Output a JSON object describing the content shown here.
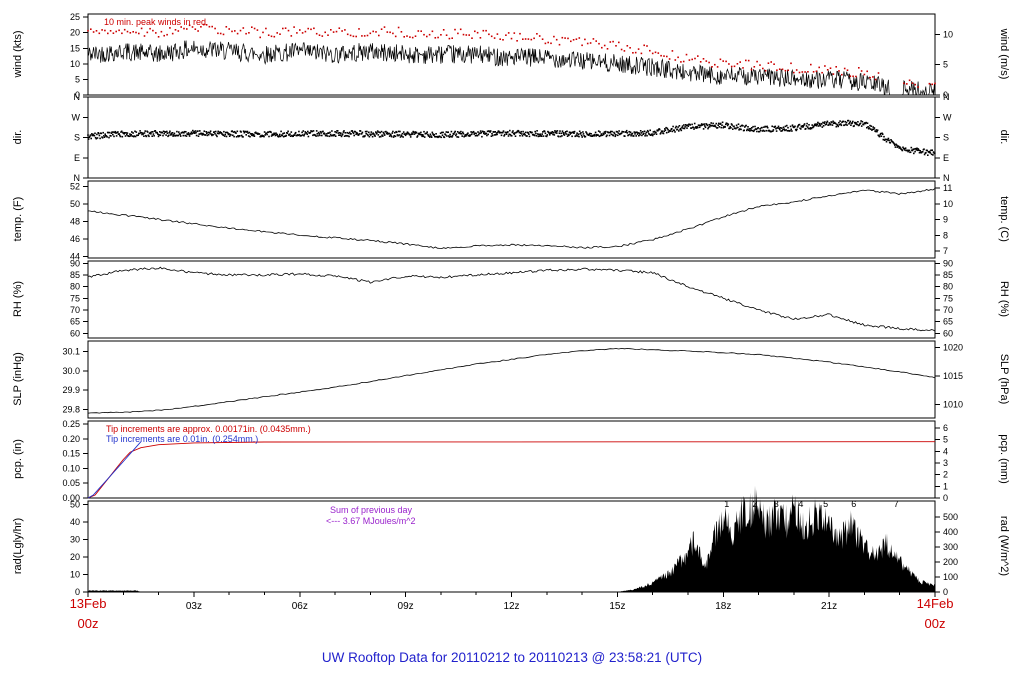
{
  "chart_data": {
    "type": "line",
    "title": "UW Rooftop Data for 20110212  to  20110213 @ 23:58:21  (UTC)",
    "title_color": "#2222cc",
    "x_axis": {
      "hours_range": [
        0,
        24
      ],
      "tick_hours": [
        3,
        6,
        9,
        12,
        15,
        18,
        21
      ],
      "tick_labels": [
        "03z",
        "06z",
        "09z",
        "12z",
        "15z",
        "18z",
        "21z"
      ],
      "start_top": "13Feb",
      "start_bottom": "00z",
      "end_top": "14Feb",
      "end_bottom": "00z",
      "corner_color": "#cc0000"
    },
    "panels": [
      {
        "id": "wind",
        "left_title": "wind (kts)",
        "right_title": "wind (m/s)",
        "ylim": [
          0,
          26
        ],
        "left_ticks": [
          {
            "v": 0,
            "label": "0"
          },
          {
            "v": 5,
            "label": "5"
          },
          {
            "v": 10,
            "label": "10"
          },
          {
            "v": 15,
            "label": "15"
          },
          {
            "v": 20,
            "label": "20"
          },
          {
            "v": 25,
            "label": "25"
          }
        ],
        "right_ticks": [
          {
            "v": 0,
            "label": "0"
          },
          {
            "v": 9.72,
            "label": "5"
          },
          {
            "v": 19.44,
            "label": "10"
          }
        ],
        "annotation": {
          "text": "10 min. peak winds in red",
          "color": "#cc0000"
        },
        "series": [
          {
            "name": "wind_speed",
            "type": "noisyline",
            "color": "#000000",
            "lw": 0.7,
            "noise": 3.0,
            "step": 0.02,
            "clampMin": 0,
            "gaps": [
              [
                22.72,
                23.05
              ]
            ],
            "x": [
              0,
              1,
              2,
              3,
              4,
              5,
              6,
              7,
              8,
              9,
              10,
              11,
              12,
              13,
              14,
              15,
              16,
              17,
              18,
              19,
              20,
              21,
              22,
              23,
              24
            ],
            "y": [
              13,
              14,
              13,
              15,
              14,
              13,
              14,
              13,
              14,
              13,
              13,
              13,
              12,
              12,
              11,
              10,
              9,
              7,
              6,
              6,
              5,
              5,
              4,
              2,
              1
            ]
          },
          {
            "name": "peak_wind",
            "type": "dots",
            "color": "#cc0000",
            "size": 1.6,
            "noise": 1.6,
            "step": 0.08,
            "clampMin": 0.5,
            "gaps": [
              [
                22.4,
                23.1
              ],
              [
                23.55,
                23.8
              ]
            ],
            "x": [
              0,
              1,
              2,
              3,
              4,
              5,
              6,
              7,
              8,
              9,
              10,
              11,
              12,
              13,
              14,
              15,
              16,
              17,
              18,
              19,
              20,
              21,
              22,
              23,
              24
            ],
            "y": [
              20,
              21,
              20,
              21.5,
              20.5,
              20,
              20.5,
              20,
              20.5,
              20,
              19.5,
              19.5,
              18.5,
              18,
              17,
              15.5,
              14,
              11.5,
              10,
              9.5,
              8.5,
              8,
              7,
              4.5,
              3
            ]
          }
        ]
      },
      {
        "id": "dir",
        "left_title": "dir.",
        "right_title": "dir.",
        "ylim": [
          0,
          360
        ],
        "left_ticks": [
          {
            "v": 0,
            "label": "N"
          },
          {
            "v": 90,
            "label": "E"
          },
          {
            "v": 180,
            "label": "S"
          },
          {
            "v": 270,
            "label": "W"
          },
          {
            "v": 360,
            "label": "N"
          }
        ],
        "right_ticks": [
          {
            "v": 0,
            "label": "N"
          },
          {
            "v": 90,
            "label": "E"
          },
          {
            "v": 180,
            "label": "S"
          },
          {
            "v": 270,
            "label": "W"
          },
          {
            "v": 360,
            "label": "N"
          }
        ],
        "series": [
          {
            "name": "wind_direction",
            "type": "dots",
            "color": "#000000",
            "size": 1.6,
            "noise": 13,
            "step": 0.018,
            "x": [
              0,
              1,
              2,
              3,
              4,
              5,
              6,
              7,
              8,
              9,
              10,
              11,
              12,
              13,
              14,
              15,
              16,
              17,
              18,
              19,
              20,
              21,
              22,
              23,
              24
            ],
            "y": [
              185,
              196,
              197,
              198,
              196,
              194,
              196,
              198,
              196,
              194,
              193,
              196,
              198,
              197,
              195,
              197,
              200,
              228,
              235,
              215,
              222,
              240,
              244,
              130,
              110
            ]
          }
        ]
      },
      {
        "id": "temp",
        "left_title": "temp. (F)",
        "right_title": "temp. (C)",
        "ylim": [
          43.8,
          52.6
        ],
        "left_ticks": [
          {
            "v": 44,
            "label": "44"
          },
          {
            "v": 46,
            "label": "46"
          },
          {
            "v": 48,
            "label": "48"
          },
          {
            "v": 50,
            "label": "50"
          },
          {
            "v": 52,
            "label": "52"
          }
        ],
        "right_ticks": [
          {
            "v": 44.6,
            "label": "7"
          },
          {
            "v": 46.4,
            "label": "8"
          },
          {
            "v": 48.2,
            "label": "9"
          },
          {
            "v": 50.0,
            "label": "10"
          },
          {
            "v": 51.8,
            "label": "11"
          }
        ],
        "series": [
          {
            "name": "temperature",
            "type": "noisyline",
            "color": "#000000",
            "lw": 0.8,
            "noise": 0.1,
            "step": 0.06,
            "x": [
              0,
              1,
              2,
              3,
              4,
              5,
              6,
              7,
              8,
              9,
              10,
              11,
              12,
              13,
              14,
              15,
              16,
              17,
              18,
              19,
              20,
              21,
              22,
              23,
              24
            ],
            "y": [
              49.2,
              48.7,
              48.2,
              47.7,
              47.2,
              46.8,
              46.4,
              46.1,
              45.8,
              45.4,
              44.9,
              45.2,
              45.3,
              45.2,
              45.0,
              45.1,
              45.9,
              47.1,
              48.5,
              49.7,
              50.2,
              50.9,
              51.6,
              51.1,
              51.7
            ]
          }
        ]
      },
      {
        "id": "rh",
        "left_title": "RH (%)",
        "right_title": "RH (%)",
        "ylim": [
          58,
          91
        ],
        "left_ticks": [
          {
            "v": 60,
            "label": "60"
          },
          {
            "v": 65,
            "label": "65"
          },
          {
            "v": 70,
            "label": "70"
          },
          {
            "v": 75,
            "label": "75"
          },
          {
            "v": 80,
            "label": "80"
          },
          {
            "v": 85,
            "label": "85"
          },
          {
            "v": 90,
            "label": "90"
          }
        ],
        "right_ticks": [
          {
            "v": 60,
            "label": "60"
          },
          {
            "v": 65,
            "label": "65"
          },
          {
            "v": 70,
            "label": "70"
          },
          {
            "v": 75,
            "label": "75"
          },
          {
            "v": 80,
            "label": "80"
          },
          {
            "v": 85,
            "label": "85"
          },
          {
            "v": 90,
            "label": "90"
          }
        ],
        "series": [
          {
            "name": "relative_humidity",
            "type": "noisyline",
            "color": "#000000",
            "lw": 0.8,
            "noise": 0.5,
            "step": 0.05,
            "x": [
              0,
              1,
              2,
              3,
              4,
              5,
              6,
              7,
              8,
              9,
              10,
              11,
              12,
              13,
              14,
              15,
              16,
              17,
              18,
              19,
              20,
              21,
              22,
              23,
              24
            ],
            "y": [
              84,
              87,
              88,
              86,
              85,
              85,
              85.5,
              84.5,
              82,
              84.5,
              84,
              85,
              86,
              87,
              87.5,
              87,
              86,
              80,
              75,
              70,
              66,
              68,
              63.5,
              62,
              61
            ]
          }
        ]
      },
      {
        "id": "slp",
        "left_title": "SLP (inHg)",
        "right_title": "SLP (hPa)",
        "ylim": [
          29.755,
          30.155
        ],
        "left_ticks": [
          {
            "v": 29.8,
            "label": "29.8"
          },
          {
            "v": 29.9,
            "label": "29.9"
          },
          {
            "v": 30.0,
            "label": "30.0"
          },
          {
            "v": 30.1,
            "label": "30.1"
          }
        ],
        "right_ticks": [
          {
            "v": 29.826,
            "label": "1010"
          },
          {
            "v": 29.973,
            "label": "1015"
          },
          {
            "v": 30.121,
            "label": "1020"
          }
        ],
        "series": [
          {
            "name": "sea_level_pressure",
            "type": "noisyline",
            "color": "#000000",
            "lw": 0.8,
            "noise": 0.0025,
            "step": 0.08,
            "x": [
              0,
              1,
              2,
              3,
              4,
              5,
              6,
              7,
              8,
              9,
              10,
              11,
              12,
              13,
              14,
              15,
              16,
              17,
              18,
              19,
              20,
              21,
              22,
              23,
              24
            ],
            "y": [
              29.78,
              29.785,
              29.795,
              29.815,
              29.84,
              29.865,
              29.89,
              29.915,
              29.945,
              29.975,
              30.005,
              30.035,
              30.06,
              30.085,
              30.105,
              30.115,
              30.11,
              30.103,
              30.095,
              30.085,
              30.065,
              30.045,
              30.02,
              29.995,
              29.965
            ]
          }
        ]
      },
      {
        "id": "pcp",
        "left_title": "pcp. (in)",
        "right_title": "pcp. (mm)",
        "ylim": [
          0,
          0.26
        ],
        "left_ticks": [
          {
            "v": 0,
            "label": "0.00"
          },
          {
            "v": 0.05,
            "label": "0.05"
          },
          {
            "v": 0.1,
            "label": "0.10"
          },
          {
            "v": 0.15,
            "label": "0.15"
          },
          {
            "v": 0.2,
            "label": "0.20"
          },
          {
            "v": 0.25,
            "label": "0.25"
          }
        ],
        "right_ticks": [
          {
            "v": 0,
            "label": "0"
          },
          {
            "v": 0.03937,
            "label": "1"
          },
          {
            "v": 0.07874,
            "label": "2"
          },
          {
            "v": 0.11811,
            "label": "3"
          },
          {
            "v": 0.15748,
            "label": "4"
          },
          {
            "v": 0.19685,
            "label": "5"
          },
          {
            "v": 0.23622,
            "label": "6"
          }
        ],
        "annotations": [
          {
            "text": "Tip increments are approx. 0.00171in. (0.0435mm.)",
            "color": "#cc0000"
          },
          {
            "text": "Tip increments are 0.01in. (0.254mm.)",
            "color": "#2233cc"
          }
        ],
        "series": [
          {
            "name": "precip_fine_tips",
            "type": "line",
            "color": "#cc0000",
            "lw": 0.9,
            "x": [
              0,
              0.2,
              0.4,
              0.6,
              0.8,
              1.0,
              1.2,
              1.5,
              2,
              3,
              5,
              24
            ],
            "y": [
              0,
              0.01,
              0.04,
              0.07,
              0.1,
              0.13,
              0.155,
              0.17,
              0.18,
              0.186,
              0.189,
              0.19
            ]
          },
          {
            "name": "precip_coarse_tips",
            "type": "line",
            "color": "#2233cc",
            "lw": 0.9,
            "x": [
              0,
              0.15,
              0.3,
              0.45,
              0.6,
              0.75,
              0.9,
              1.05,
              1.2,
              1.35,
              1.5
            ],
            "y": [
              0,
              0.01,
              0.03,
              0.05,
              0.07,
              0.09,
              0.11,
              0.13,
              0.15,
              0.17,
              0.19
            ]
          }
        ]
      },
      {
        "id": "rad",
        "left_title": "rad(Lgly/hr)",
        "right_title": "rad (W/m^2)",
        "ylim": [
          0,
          52
        ],
        "left_ticks": [
          {
            "v": 0,
            "label": "0"
          },
          {
            "v": 10,
            "label": "10"
          },
          {
            "v": 20,
            "label": "20"
          },
          {
            "v": 30,
            "label": "30"
          },
          {
            "v": 40,
            "label": "40"
          },
          {
            "v": 50,
            "label": "50"
          }
        ],
        "right_ticks": [
          {
            "v": 0,
            "label": "0"
          },
          {
            "v": 8.6,
            "label": "100"
          },
          {
            "v": 17.2,
            "label": "200"
          },
          {
            "v": 25.8,
            "label": "300"
          },
          {
            "v": 34.4,
            "label": "400"
          },
          {
            "v": 43.0,
            "label": "500"
          }
        ],
        "annotations": [
          {
            "text": "Sum of previous day",
            "color": "#9922cc"
          },
          {
            "text": "<---  3.67 MJoules/m^2",
            "color": "#9922cc"
          }
        ],
        "numbers": {
          "labels": [
            "1",
            "2",
            "3",
            "4",
            "5",
            "6",
            "7"
          ],
          "hours": [
            18.1,
            18.9,
            19.5,
            20.2,
            20.9,
            21.7,
            22.9
          ],
          "y": 48.5,
          "color": "#9922cc"
        },
        "series": [
          {
            "name": "solar_radiation",
            "type": "fillnoisy",
            "color": "#000000",
            "noise": 10,
            "step": 0.02,
            "x": [
              0,
              1.4,
              1.5,
              15,
              15.5,
              16,
              16.5,
              17,
              17.2,
              17.5,
              17.8,
              18,
              18.3,
              18.6,
              19,
              19.2,
              19.5,
              19.8,
              20,
              20.3,
              20.6,
              21,
              21.3,
              21.6,
              22,
              22.3,
              22.6,
              23,
              23.3,
              23.6,
              24
            ],
            "y": [
              0.8,
              0.8,
              0.05,
              0.05,
              1.5,
              5,
              11,
              22,
              30,
              14,
              34,
              42,
              34,
              47,
              50,
              38,
              46,
              40,
              48,
              36,
              44,
              40,
              30,
              38,
              26,
              20,
              28,
              18,
              11,
              6,
              4
            ]
          }
        ]
      }
    ]
  }
}
